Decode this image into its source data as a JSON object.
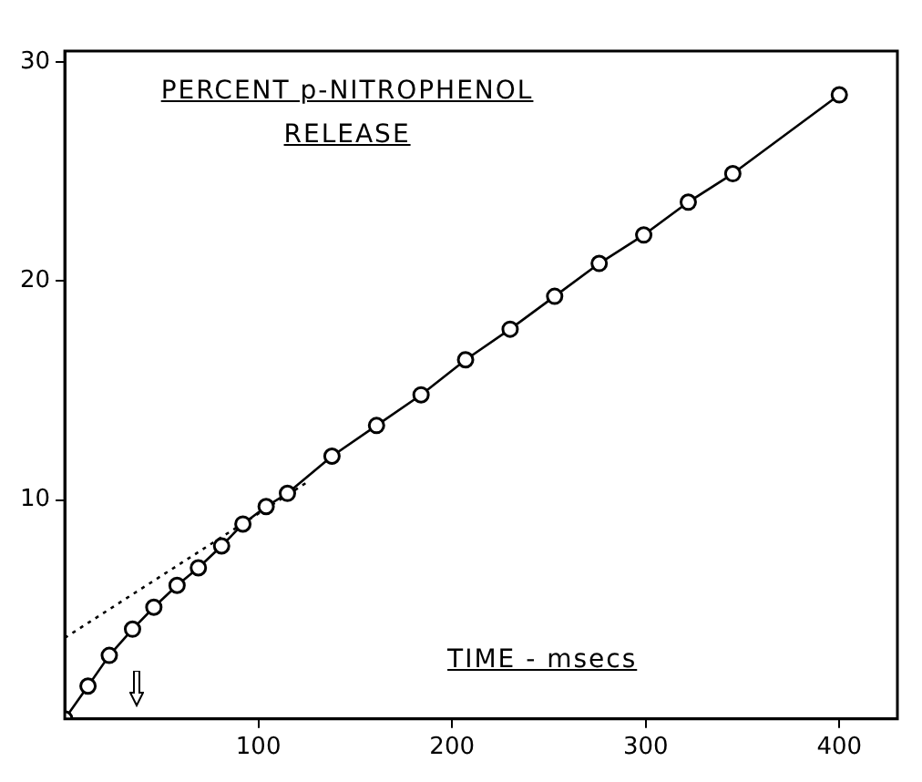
{
  "chart_data": {
    "type": "line",
    "title": "PERCENT p-NITROPHENOL RELEASE",
    "xlabel": "TIME - msecs",
    "series": [
      {
        "type": "line",
        "color": "#000000",
        "marker": "circle",
        "line_style": "solid",
        "x": [
          0,
          12,
          23,
          35,
          46,
          58,
          69,
          81,
          92,
          104,
          115,
          138,
          161,
          184,
          207,
          230,
          253,
          276,
          299,
          322,
          345,
          400
        ],
        "values": [
          0,
          1.5,
          2.9,
          4.1,
          5.1,
          6.1,
          6.9,
          7.9,
          8.9,
          9.7,
          10.3,
          12.0,
          13.4,
          14.8,
          16.4,
          17.8,
          19.3,
          20.8,
          22.1,
          23.6,
          24.9,
          28.5
        ]
      },
      {
        "type": "line",
        "color": "#000000",
        "marker": "none",
        "line_style": "dotted",
        "x": [
          0,
          125
        ],
        "values": [
          3.7,
          10.8
        ]
      }
    ],
    "xlim": [
      0,
      430
    ],
    "xticks": [
      100,
      200,
      300,
      400
    ],
    "ylim": [
      0,
      30.5
    ],
    "yticks": [
      10,
      20,
      30
    ],
    "grid": false,
    "legend": false
  }
}
